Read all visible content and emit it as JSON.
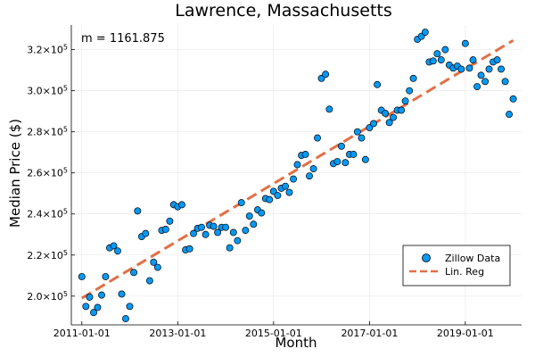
{
  "chart_data": {
    "type": "scatter",
    "title": "Lawrence, Massachusetts",
    "xlabel": "Month",
    "ylabel": "Median Price ($)",
    "annotation": "m = 1161.875",
    "x_ticks": [
      "2011-01-01",
      "2013-01-01",
      "2015-01-01",
      "2017-01-01",
      "2019-01-01"
    ],
    "y_ticks": [
      {
        "value": 200000,
        "mantissa": "2.0",
        "exp": "5"
      },
      {
        "value": 220000,
        "mantissa": "2.2",
        "exp": "5"
      },
      {
        "value": 240000,
        "mantissa": "2.4",
        "exp": "5"
      },
      {
        "value": 260000,
        "mantissa": "2.6",
        "exp": "5"
      },
      {
        "value": 280000,
        "mantissa": "2.8",
        "exp": "5"
      },
      {
        "value": 300000,
        "mantissa": "3.0",
        "exp": "5"
      },
      {
        "value": 320000,
        "mantissa": "3.2",
        "exp": "5"
      }
    ],
    "xlim": [
      "2010-10-13",
      "2020-03-05"
    ],
    "ylim": [
      186000,
      332000
    ],
    "grid": true,
    "legend_position": "bottom-right",
    "series": [
      {
        "name": "Zillow Data",
        "kind": "scatter",
        "color": "#009af9",
        "points": [
          [
            "2011-01-01",
            209500
          ],
          [
            "2011-02-01",
            195000
          ],
          [
            "2011-03-01",
            199500
          ],
          [
            "2011-04-01",
            192000
          ],
          [
            "2011-05-01",
            194500
          ],
          [
            "2011-06-01",
            200500
          ],
          [
            "2011-07-01",
            209500
          ],
          [
            "2011-08-01",
            223500
          ],
          [
            "2011-09-01",
            224500
          ],
          [
            "2011-10-01",
            222000
          ],
          [
            "2011-11-01",
            201000
          ],
          [
            "2011-12-01",
            189000
          ],
          [
            "2012-01-01",
            195000
          ],
          [
            "2012-02-01",
            211500
          ],
          [
            "2012-03-01",
            241500
          ],
          [
            "2012-04-01",
            229000
          ],
          [
            "2012-05-01",
            230500
          ],
          [
            "2012-06-01",
            207500
          ],
          [
            "2012-07-01",
            216500
          ],
          [
            "2012-08-01",
            214000
          ],
          [
            "2012-09-01",
            232000
          ],
          [
            "2012-10-01",
            232500
          ],
          [
            "2012-11-01",
            236500
          ],
          [
            "2012-12-01",
            244500
          ],
          [
            "2013-01-01",
            243500
          ],
          [
            "2013-02-01",
            244500
          ],
          [
            "2013-03-01",
            222500
          ],
          [
            "2013-04-01",
            223000
          ],
          [
            "2013-05-01",
            230500
          ],
          [
            "2013-06-01",
            233000
          ],
          [
            "2013-07-01",
            233500
          ],
          [
            "2013-08-01",
            230000
          ],
          [
            "2013-09-01",
            234500
          ],
          [
            "2013-10-01",
            234000
          ],
          [
            "2013-11-01",
            231000
          ],
          [
            "2013-12-01",
            233500
          ],
          [
            "2014-01-01",
            233500
          ],
          [
            "2014-02-01",
            223500
          ],
          [
            "2014-03-01",
            231000
          ],
          [
            "2014-04-01",
            227000
          ],
          [
            "2014-05-01",
            245500
          ],
          [
            "2014-06-01",
            232000
          ],
          [
            "2014-07-01",
            239000
          ],
          [
            "2014-08-01",
            235000
          ],
          [
            "2014-09-01",
            242000
          ],
          [
            "2014-10-01",
            240500
          ],
          [
            "2014-11-01",
            247500
          ],
          [
            "2014-12-01",
            247000
          ],
          [
            "2015-01-01",
            251000
          ],
          [
            "2015-02-01",
            249000
          ],
          [
            "2015-03-01",
            252500
          ],
          [
            "2015-04-01",
            253500
          ],
          [
            "2015-05-01",
            250500
          ],
          [
            "2015-06-01",
            257000
          ],
          [
            "2015-07-01",
            264000
          ],
          [
            "2015-08-01",
            268500
          ],
          [
            "2015-09-01",
            269000
          ],
          [
            "2015-10-01",
            258500
          ],
          [
            "2015-11-01",
            262000
          ],
          [
            "2015-12-01",
            277000
          ],
          [
            "2016-01-01",
            306000
          ],
          [
            "2016-02-01",
            308000
          ],
          [
            "2016-03-01",
            291000
          ],
          [
            "2016-04-01",
            264500
          ],
          [
            "2016-05-01",
            265500
          ],
          [
            "2016-06-01",
            273000
          ],
          [
            "2016-07-01",
            265000
          ],
          [
            "2016-08-01",
            269000
          ],
          [
            "2016-09-01",
            269000
          ],
          [
            "2016-10-01",
            280000
          ],
          [
            "2016-11-01",
            277000
          ],
          [
            "2016-12-01",
            266500
          ],
          [
            "2017-01-01",
            282000
          ],
          [
            "2017-02-01",
            284000
          ],
          [
            "2017-03-01",
            303000
          ],
          [
            "2017-04-01",
            290500
          ],
          [
            "2017-05-01",
            289000
          ],
          [
            "2017-06-01",
            284500
          ],
          [
            "2017-07-01",
            287000
          ],
          [
            "2017-08-01",
            290500
          ],
          [
            "2017-09-01",
            290500
          ],
          [
            "2017-10-01",
            295000
          ],
          [
            "2017-11-01",
            300000
          ],
          [
            "2017-12-01",
            306000
          ],
          [
            "2018-01-01",
            325000
          ],
          [
            "2018-02-01",
            326500
          ],
          [
            "2018-03-01",
            328500
          ],
          [
            "2018-04-01",
            314000
          ],
          [
            "2018-05-01",
            314500
          ],
          [
            "2018-06-01",
            318000
          ],
          [
            "2018-07-01",
            315000
          ],
          [
            "2018-08-01",
            320000
          ],
          [
            "2018-09-01",
            312500
          ],
          [
            "2018-10-01",
            311000
          ],
          [
            "2018-11-01",
            312000
          ],
          [
            "2018-12-01",
            310500
          ],
          [
            "2019-01-01",
            323000
          ],
          [
            "2019-02-01",
            311000
          ],
          [
            "2019-03-01",
            315000
          ],
          [
            "2019-04-01",
            302000
          ],
          [
            "2019-05-01",
            307500
          ],
          [
            "2019-06-01",
            304500
          ],
          [
            "2019-07-01",
            310500
          ],
          [
            "2019-08-01",
            314000
          ],
          [
            "2019-09-01",
            315000
          ],
          [
            "2019-10-01",
            310500
          ],
          [
            "2019-11-01",
            304500
          ],
          [
            "2019-12-01",
            288500
          ],
          [
            "2020-01-01",
            296000
          ]
        ]
      },
      {
        "name": "Lin. Reg",
        "kind": "line",
        "style": "dashed",
        "color": "#e26f46",
        "points": [
          [
            "2011-01-01",
            199000
          ],
          [
            "2020-01-01",
            324500
          ]
        ]
      }
    ]
  }
}
